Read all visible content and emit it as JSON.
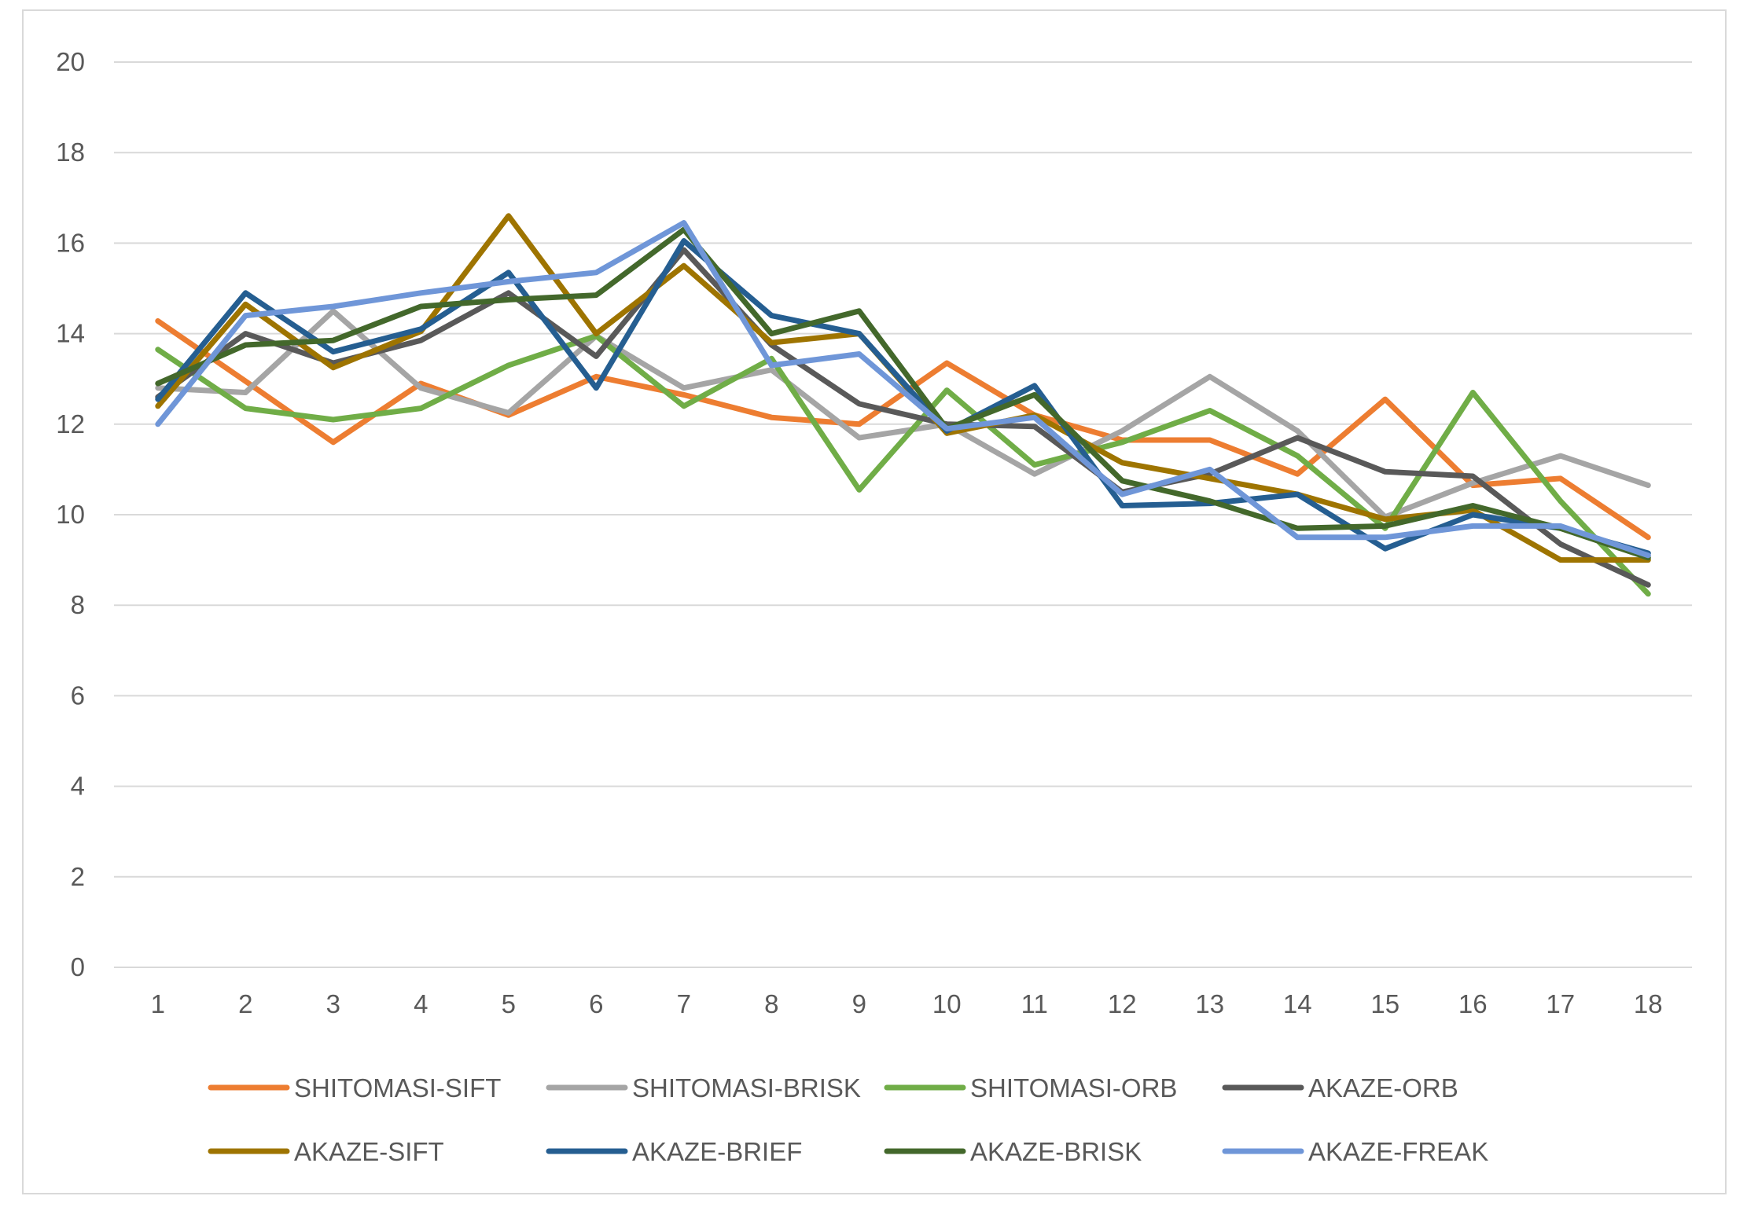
{
  "chart_data": {
    "type": "line",
    "title": "",
    "xlabel": "",
    "ylabel": "",
    "x": [
      1,
      2,
      3,
      4,
      5,
      6,
      7,
      8,
      9,
      10,
      11,
      12,
      13,
      14,
      15,
      16,
      17,
      18
    ],
    "ylim": [
      0,
      20
    ],
    "yticks": [
      0,
      2,
      4,
      6,
      8,
      10,
      12,
      14,
      16,
      18,
      20
    ],
    "grid": "horizontal",
    "legend_position": "bottom",
    "series": [
      {
        "name": "SHITOMASI-SIFT",
        "color": "#ED7D31",
        "values": [
          14.28,
          12.95,
          11.6,
          12.9,
          12.2,
          13.05,
          12.65,
          12.15,
          12.0,
          13.35,
          12.2,
          11.65,
          11.65,
          10.9,
          12.55,
          10.65,
          10.8,
          9.5
        ]
      },
      {
        "name": "SHITOMASI-BRISK",
        "color": "#A5A5A5",
        "values": [
          12.8,
          12.7,
          14.5,
          12.8,
          12.25,
          13.95,
          12.8,
          13.2,
          11.7,
          12.0,
          10.9,
          11.85,
          13.05,
          11.85,
          9.95,
          10.7,
          11.3,
          10.65
        ]
      },
      {
        "name": "SHITOMASI-ORB",
        "color": "#70AD47",
        "values": [
          13.65,
          12.35,
          12.1,
          12.35,
          13.3,
          13.95,
          12.4,
          13.45,
          10.55,
          12.75,
          11.1,
          11.6,
          12.3,
          11.3,
          9.7,
          12.7,
          10.3,
          8.25
        ]
      },
      {
        "name": "AKAZE-ORB",
        "color": "#595959",
        "values": [
          12.6,
          14.0,
          13.35,
          13.85,
          14.9,
          13.5,
          15.85,
          13.75,
          12.45,
          12.0,
          11.95,
          10.5,
          10.9,
          11.7,
          10.95,
          10.85,
          9.35,
          8.45
        ]
      },
      {
        "name": "AKAZE-SIFT",
        "color": "#9E7400",
        "values": [
          12.4,
          14.65,
          13.25,
          14.05,
          16.6,
          14.0,
          15.5,
          13.8,
          14.0,
          11.8,
          12.2,
          11.15,
          10.8,
          10.45,
          9.9,
          10.1,
          9.0,
          9.0
        ]
      },
      {
        "name": "AKAZE-BRIEF",
        "color": "#255E91",
        "values": [
          12.55,
          14.9,
          13.6,
          14.1,
          15.35,
          12.8,
          16.05,
          14.4,
          14.0,
          11.85,
          12.85,
          10.2,
          10.25,
          10.45,
          9.25,
          10.0,
          9.7,
          9.15
        ]
      },
      {
        "name": "AKAZE-BRISK",
        "color": "#43682B",
        "values": [
          12.9,
          13.75,
          13.85,
          14.6,
          14.75,
          14.85,
          16.3,
          14.0,
          14.5,
          11.9,
          12.65,
          10.75,
          10.3,
          9.7,
          9.75,
          10.2,
          9.7,
          9.05
        ]
      },
      {
        "name": "AKAZE-FREAK",
        "color": "#6F96D8",
        "values": [
          12.0,
          14.4,
          14.6,
          14.9,
          15.15,
          15.35,
          16.45,
          13.3,
          13.55,
          11.9,
          12.15,
          10.45,
          11.0,
          9.5,
          9.5,
          9.75,
          9.75,
          9.1
        ]
      }
    ]
  }
}
